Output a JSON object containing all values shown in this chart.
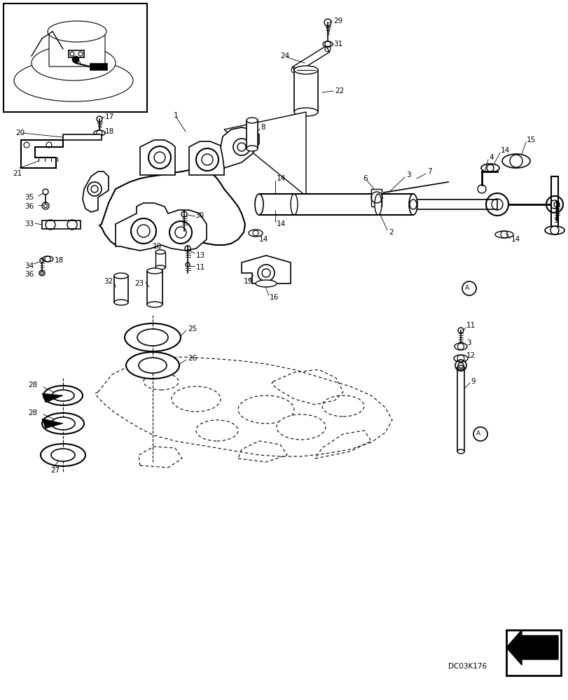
{
  "bg_color": "#ffffff",
  "watermark": "DC03K176",
  "border_color": "#000000"
}
